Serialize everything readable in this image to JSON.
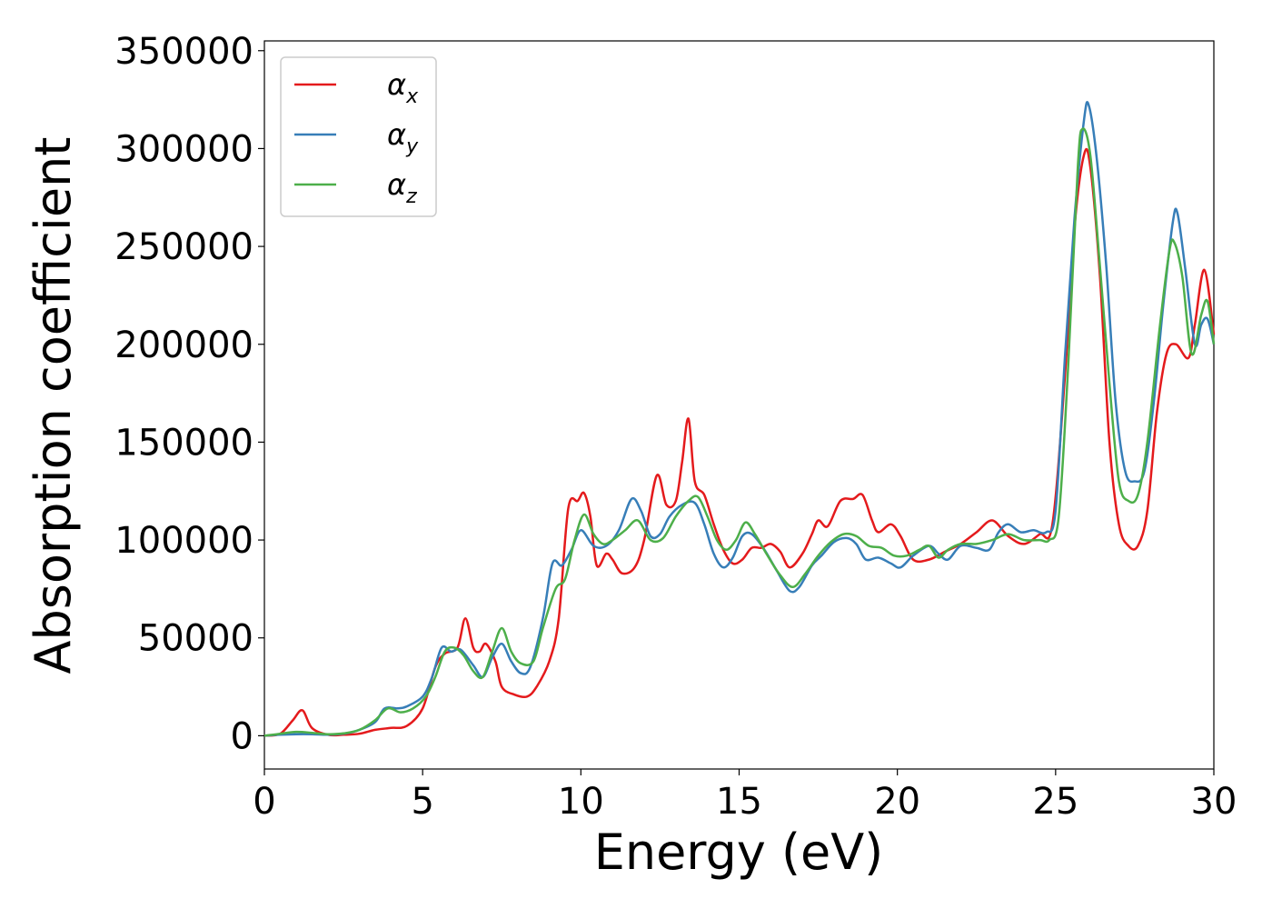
{
  "chart_data": {
    "type": "line",
    "title": "",
    "xlabel": "Energy (eV)",
    "ylabel": "Absorption coefficient",
    "xlim": [
      0,
      30
    ],
    "ylim": [
      -17000,
      355000
    ],
    "xticks": [
      0,
      5,
      10,
      15,
      20,
      25,
      30
    ],
    "yticks": [
      0,
      50000,
      100000,
      150000,
      200000,
      250000,
      300000,
      350000
    ],
    "grid": false,
    "legend_position": "top-left",
    "series": [
      {
        "name": "α_x",
        "symbol": "α",
        "subscript": "x",
        "color": "#e41a1c",
        "points": [
          [
            0,
            0
          ],
          [
            0.5,
            1000
          ],
          [
            0.9,
            8000
          ],
          [
            1.2,
            13000
          ],
          [
            1.5,
            4000
          ],
          [
            2,
            500
          ],
          [
            2.5,
            500
          ],
          [
            3,
            1000
          ],
          [
            3.5,
            3000
          ],
          [
            4,
            4000
          ],
          [
            4.5,
            5000
          ],
          [
            5,
            14000
          ],
          [
            5.4,
            35000
          ],
          [
            5.7,
            42000
          ],
          [
            6.1,
            45000
          ],
          [
            6.35,
            60000
          ],
          [
            6.6,
            45000
          ],
          [
            6.8,
            43000
          ],
          [
            7,
            47000
          ],
          [
            7.3,
            38000
          ],
          [
            7.5,
            25000
          ],
          [
            7.9,
            21000
          ],
          [
            8.3,
            20000
          ],
          [
            8.6,
            25000
          ],
          [
            9,
            38000
          ],
          [
            9.3,
            60000
          ],
          [
            9.6,
            116000
          ],
          [
            9.9,
            120000
          ],
          [
            10.1,
            124000
          ],
          [
            10.3,
            112000
          ],
          [
            10.5,
            87000
          ],
          [
            10.8,
            93000
          ],
          [
            11,
            90000
          ],
          [
            11.3,
            83000
          ],
          [
            11.7,
            86000
          ],
          [
            12,
            100000
          ],
          [
            12.4,
            133000
          ],
          [
            12.7,
            118000
          ],
          [
            13,
            120000
          ],
          [
            13.2,
            140000
          ],
          [
            13.4,
            162000
          ],
          [
            13.6,
            130000
          ],
          [
            13.9,
            123000
          ],
          [
            14.2,
            108000
          ],
          [
            14.5,
            95000
          ],
          [
            14.8,
            88000
          ],
          [
            15.1,
            90000
          ],
          [
            15.4,
            96000
          ],
          [
            15.7,
            96000
          ],
          [
            16,
            98000
          ],
          [
            16.3,
            94000
          ],
          [
            16.6,
            86000
          ],
          [
            17,
            93000
          ],
          [
            17.3,
            103000
          ],
          [
            17.5,
            110000
          ],
          [
            17.8,
            107000
          ],
          [
            18.2,
            120000
          ],
          [
            18.6,
            121000
          ],
          [
            18.9,
            123000
          ],
          [
            19.2,
            110000
          ],
          [
            19.4,
            104000
          ],
          [
            19.8,
            108000
          ],
          [
            20.1,
            102000
          ],
          [
            20.5,
            90000
          ],
          [
            21,
            90000
          ],
          [
            21.5,
            94000
          ],
          [
            22,
            98000
          ],
          [
            22.5,
            104000
          ],
          [
            23,
            110000
          ],
          [
            23.5,
            102000
          ],
          [
            24,
            98000
          ],
          [
            24.5,
            103000
          ],
          [
            24.9,
            108000
          ],
          [
            25.3,
            185000
          ],
          [
            25.6,
            260000
          ],
          [
            25.9,
            297000
          ],
          [
            26.1,
            290000
          ],
          [
            26.4,
            235000
          ],
          [
            26.7,
            150000
          ],
          [
            27,
            108000
          ],
          [
            27.3,
            97000
          ],
          [
            27.6,
            97000
          ],
          [
            27.9,
            115000
          ],
          [
            28.2,
            165000
          ],
          [
            28.5,
            195000
          ],
          [
            28.8,
            200000
          ],
          [
            29.2,
            193000
          ],
          [
            29.4,
            210000
          ],
          [
            29.7,
            238000
          ],
          [
            30,
            205000
          ]
        ]
      },
      {
        "name": "α_y",
        "symbol": "α",
        "subscript": "y",
        "color": "#377eb8",
        "points": [
          [
            0,
            0
          ],
          [
            0.5,
            500
          ],
          [
            1,
            800
          ],
          [
            1.5,
            800
          ],
          [
            2,
            500
          ],
          [
            2.5,
            1000
          ],
          [
            3,
            3000
          ],
          [
            3.5,
            7000
          ],
          [
            3.8,
            14000
          ],
          [
            4.2,
            14000
          ],
          [
            4.5,
            15000
          ],
          [
            5,
            20000
          ],
          [
            5.3,
            30000
          ],
          [
            5.6,
            45000
          ],
          [
            5.9,
            43000
          ],
          [
            6.2,
            44000
          ],
          [
            6.6,
            36000
          ],
          [
            6.9,
            30000
          ],
          [
            7.2,
            40000
          ],
          [
            7.5,
            47000
          ],
          [
            7.8,
            38000
          ],
          [
            8.1,
            32000
          ],
          [
            8.4,
            35000
          ],
          [
            8.8,
            60000
          ],
          [
            9.1,
            88000
          ],
          [
            9.4,
            87000
          ],
          [
            9.7,
            95000
          ],
          [
            10,
            105000
          ],
          [
            10.4,
            97000
          ],
          [
            10.8,
            97000
          ],
          [
            11.2,
            105000
          ],
          [
            11.6,
            121000
          ],
          [
            11.9,
            115000
          ],
          [
            12.2,
            102000
          ],
          [
            12.5,
            103000
          ],
          [
            12.8,
            112000
          ],
          [
            13.2,
            118000
          ],
          [
            13.6,
            119000
          ],
          [
            13.9,
            108000
          ],
          [
            14.2,
            93000
          ],
          [
            14.5,
            86000
          ],
          [
            14.8,
            91000
          ],
          [
            15.1,
            102000
          ],
          [
            15.4,
            103000
          ],
          [
            15.8,
            95000
          ],
          [
            16.2,
            84000
          ],
          [
            16.6,
            74000
          ],
          [
            16.9,
            76000
          ],
          [
            17.3,
            87000
          ],
          [
            17.6,
            92000
          ],
          [
            18,
            99000
          ],
          [
            18.4,
            101000
          ],
          [
            18.7,
            98000
          ],
          [
            19,
            90000
          ],
          [
            19.4,
            91000
          ],
          [
            19.8,
            88000
          ],
          [
            20.1,
            86000
          ],
          [
            20.5,
            92000
          ],
          [
            21,
            97000
          ],
          [
            21.3,
            93000
          ],
          [
            21.6,
            90000
          ],
          [
            22,
            97000
          ],
          [
            22.5,
            96000
          ],
          [
            22.9,
            95000
          ],
          [
            23.2,
            104000
          ],
          [
            23.5,
            108000
          ],
          [
            23.9,
            104000
          ],
          [
            24.3,
            105000
          ],
          [
            24.7,
            104000
          ],
          [
            25,
            115000
          ],
          [
            25.3,
            195000
          ],
          [
            25.6,
            265000
          ],
          [
            25.9,
            315000
          ],
          [
            26.05,
            322000
          ],
          [
            26.3,
            295000
          ],
          [
            26.6,
            240000
          ],
          [
            26.9,
            170000
          ],
          [
            27.2,
            135000
          ],
          [
            27.5,
            130000
          ],
          [
            27.8,
            135000
          ],
          [
            28.1,
            170000
          ],
          [
            28.4,
            220000
          ],
          [
            28.7,
            262000
          ],
          [
            28.85,
            267000
          ],
          [
            29.1,
            238000
          ],
          [
            29.4,
            200000
          ],
          [
            29.6,
            210000
          ],
          [
            29.8,
            213000
          ],
          [
            30,
            200000
          ]
        ]
      },
      {
        "name": "α_z",
        "symbol": "α",
        "subscript": "z",
        "color": "#4daf4a",
        "points": [
          [
            0,
            0
          ],
          [
            0.5,
            1000
          ],
          [
            1,
            2000
          ],
          [
            1.5,
            1500
          ],
          [
            2,
            800
          ],
          [
            2.5,
            1200
          ],
          [
            3,
            3000
          ],
          [
            3.5,
            8000
          ],
          [
            3.9,
            14000
          ],
          [
            4.3,
            12000
          ],
          [
            4.7,
            14000
          ],
          [
            5.1,
            20000
          ],
          [
            5.4,
            30000
          ],
          [
            5.7,
            43000
          ],
          [
            6,
            45000
          ],
          [
            6.3,
            41000
          ],
          [
            6.6,
            33000
          ],
          [
            6.9,
            30000
          ],
          [
            7.2,
            43000
          ],
          [
            7.5,
            55000
          ],
          [
            7.8,
            43000
          ],
          [
            8.1,
            37000
          ],
          [
            8.5,
            38000
          ],
          [
            8.8,
            55000
          ],
          [
            9.2,
            75000
          ],
          [
            9.5,
            80000
          ],
          [
            9.8,
            100000
          ],
          [
            10.1,
            113000
          ],
          [
            10.4,
            103000
          ],
          [
            10.7,
            98000
          ],
          [
            11,
            100000
          ],
          [
            11.4,
            105000
          ],
          [
            11.8,
            110000
          ],
          [
            12.2,
            100000
          ],
          [
            12.6,
            101000
          ],
          [
            13,
            112000
          ],
          [
            13.4,
            120000
          ],
          [
            13.7,
            122000
          ],
          [
            14,
            112000
          ],
          [
            14.3,
            100000
          ],
          [
            14.6,
            95000
          ],
          [
            14.9,
            100000
          ],
          [
            15.2,
            109000
          ],
          [
            15.5,
            103000
          ],
          [
            15.9,
            92000
          ],
          [
            16.3,
            82000
          ],
          [
            16.7,
            76000
          ],
          [
            17.1,
            83000
          ],
          [
            17.5,
            92000
          ],
          [
            17.9,
            99000
          ],
          [
            18.3,
            103000
          ],
          [
            18.7,
            102000
          ],
          [
            19.1,
            97000
          ],
          [
            19.5,
            96000
          ],
          [
            19.9,
            92000
          ],
          [
            20.3,
            92000
          ],
          [
            20.7,
            95000
          ],
          [
            21,
            97000
          ],
          [
            21.3,
            91000
          ],
          [
            21.6,
            95000
          ],
          [
            22,
            98000
          ],
          [
            22.5,
            98000
          ],
          [
            23,
            100000
          ],
          [
            23.5,
            103000
          ],
          [
            24,
            100000
          ],
          [
            24.5,
            100000
          ],
          [
            24.8,
            100000
          ],
          [
            25.1,
            112000
          ],
          [
            25.4,
            190000
          ],
          [
            25.7,
            290000
          ],
          [
            25.85,
            310000
          ],
          [
            26.1,
            296000
          ],
          [
            26.4,
            240000
          ],
          [
            26.7,
            180000
          ],
          [
            27,
            130000
          ],
          [
            27.3,
            120000
          ],
          [
            27.6,
            123000
          ],
          [
            27.9,
            150000
          ],
          [
            28.3,
            210000
          ],
          [
            28.6,
            248000
          ],
          [
            28.75,
            252000
          ],
          [
            29,
            235000
          ],
          [
            29.3,
            195000
          ],
          [
            29.6,
            215000
          ],
          [
            29.8,
            222000
          ],
          [
            30,
            200000
          ]
        ]
      }
    ]
  }
}
